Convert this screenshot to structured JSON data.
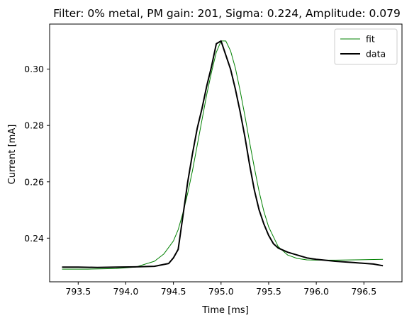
{
  "chart_data": {
    "type": "line",
    "title": "Filter: 0% metal, PM gain: 201, Sigma: 0.224, Amplitude: 0.079",
    "xlabel": "Time [ms]",
    "ylabel": "Current [mA]",
    "xlim": [
      793.2,
      796.9
    ],
    "ylim": [
      0.2245,
      0.316
    ],
    "xticks": [
      793.5,
      794.0,
      794.5,
      795.0,
      795.5,
      796.0,
      796.5
    ],
    "xtick_labels": [
      "793.5",
      "794.0",
      "794.5",
      "795.0",
      "795.5",
      "796.0",
      "796.5"
    ],
    "yticks": [
      0.24,
      0.26,
      0.28,
      0.3
    ],
    "ytick_labels": [
      "0.24",
      "0.26",
      "0.28",
      "0.30"
    ],
    "grid": false,
    "legend": {
      "placement": "top-right"
    },
    "series": [
      {
        "name": "fit",
        "color": "#008000",
        "x": [
          793.33,
          793.6,
          793.9,
          794.1,
          794.3,
          794.4,
          794.5,
          794.55,
          794.6,
          794.65,
          794.7,
          794.75,
          794.8,
          794.85,
          794.9,
          794.95,
          795.0,
          795.05,
          795.1,
          795.15,
          795.2,
          795.25,
          795.3,
          795.35,
          795.4,
          795.45,
          795.5,
          795.6,
          795.7,
          795.8,
          795.9,
          796.0,
          796.2,
          796.4,
          796.7
        ],
        "y": [
          0.229,
          0.229,
          0.2292,
          0.2297,
          0.2318,
          0.2344,
          0.239,
          0.243,
          0.249,
          0.256,
          0.264,
          0.273,
          0.282,
          0.291,
          0.299,
          0.306,
          0.31,
          0.31,
          0.3065,
          0.3005,
          0.2925,
          0.2835,
          0.274,
          0.265,
          0.2565,
          0.2495,
          0.244,
          0.237,
          0.234,
          0.2328,
          0.2323,
          0.2322,
          0.2322,
          0.2323,
          0.2325
        ]
      },
      {
        "name": "data",
        "color": "#000000",
        "x": [
          793.33,
          793.5,
          793.7,
          793.9,
          794.1,
          794.3,
          794.45,
          794.5,
          794.55,
          794.6,
          794.65,
          794.7,
          794.75,
          794.8,
          794.85,
          794.9,
          794.95,
          795.0,
          795.05,
          795.1,
          795.15,
          795.2,
          795.25,
          795.3,
          795.35,
          795.4,
          795.45,
          795.5,
          795.55,
          795.6,
          795.7,
          795.8,
          795.9,
          796.0,
          796.2,
          796.4,
          796.6,
          796.7
        ],
        "y": [
          0.2297,
          0.2297,
          0.2296,
          0.2297,
          0.2298,
          0.23,
          0.231,
          0.233,
          0.236,
          0.248,
          0.26,
          0.27,
          0.279,
          0.286,
          0.294,
          0.301,
          0.309,
          0.31,
          0.305,
          0.3,
          0.293,
          0.285,
          0.276,
          0.266,
          0.257,
          0.25,
          0.245,
          0.241,
          0.238,
          0.2365,
          0.235,
          0.234,
          0.233,
          0.2325,
          0.2318,
          0.2313,
          0.2308,
          0.2302
        ]
      }
    ]
  }
}
